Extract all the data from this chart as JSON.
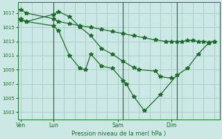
{
  "bg_color": "#cce8e4",
  "grid_color": "#aaceca",
  "line_color": "#1a6b2a",
  "title": "Pression niveau de la mer( hPa )",
  "xlabel_ticks": [
    "Ven",
    "Lun",
    "Sam",
    "Dim"
  ],
  "xlabel_tick_pos": [
    0,
    3,
    9,
    14
  ],
  "ylabel_ticks": [
    1003,
    1005,
    1007,
    1009,
    1011,
    1013,
    1015,
    1017
  ],
  "ylim": [
    1002.0,
    1018.5
  ],
  "xlim": [
    -0.3,
    18.5
  ],
  "series1_x": [
    0,
    0.5,
    3.0,
    3.5,
    4.5,
    5.5,
    6.5,
    7.5,
    8.5,
    9.5,
    10.5,
    11.5,
    12.5,
    13.5,
    14.0,
    14.5,
    15.0,
    15.5,
    16.0,
    16.5,
    17.0,
    17.5,
    18.0
  ],
  "series1_y": [
    1017.5,
    1017.0,
    1016.2,
    1015.8,
    1015.5,
    1015.2,
    1015.0,
    1014.7,
    1014.4,
    1014.1,
    1013.8,
    1013.5,
    1013.2,
    1013.0,
    1013.0,
    1013.0,
    1013.0,
    1013.1,
    1013.1,
    1013.0,
    1013.0,
    1012.9,
    1013.0
  ],
  "series2_x": [
    0,
    0.5,
    3.0,
    3.5,
    4.5,
    5.5,
    6.5,
    7.5,
    8.5,
    9.5,
    10.5,
    11.0,
    12.5,
    13.0,
    14.0
  ],
  "series2_y": [
    1016.2,
    1015.8,
    1016.8,
    1017.2,
    1016.5,
    1015.0,
    1013.8,
    1012.0,
    1011.2,
    1010.2,
    1009.3,
    1009.0,
    1008.8,
    1008.0,
    1007.8
  ],
  "series3_x": [
    0,
    0.5,
    3.0,
    3.5,
    4.5,
    5.5,
    6.0,
    6.5,
    7.5,
    8.5,
    9.5,
    9.8,
    10.5,
    11.5,
    13.0,
    14.5,
    15.5,
    16.5,
    17.5,
    18.0
  ],
  "series3_y": [
    1016.0,
    1015.8,
    1015.2,
    1014.5,
    1011.0,
    1009.2,
    1009.0,
    1011.2,
    1009.5,
    1009.2,
    1007.5,
    1007.0,
    1005.2,
    1003.2,
    1005.5,
    1008.2,
    1009.2,
    1011.2,
    1012.8,
    1013.0
  ],
  "vline_x": [
    3.0,
    9.5,
    14.5
  ],
  "marker": "*",
  "markersize": 4
}
